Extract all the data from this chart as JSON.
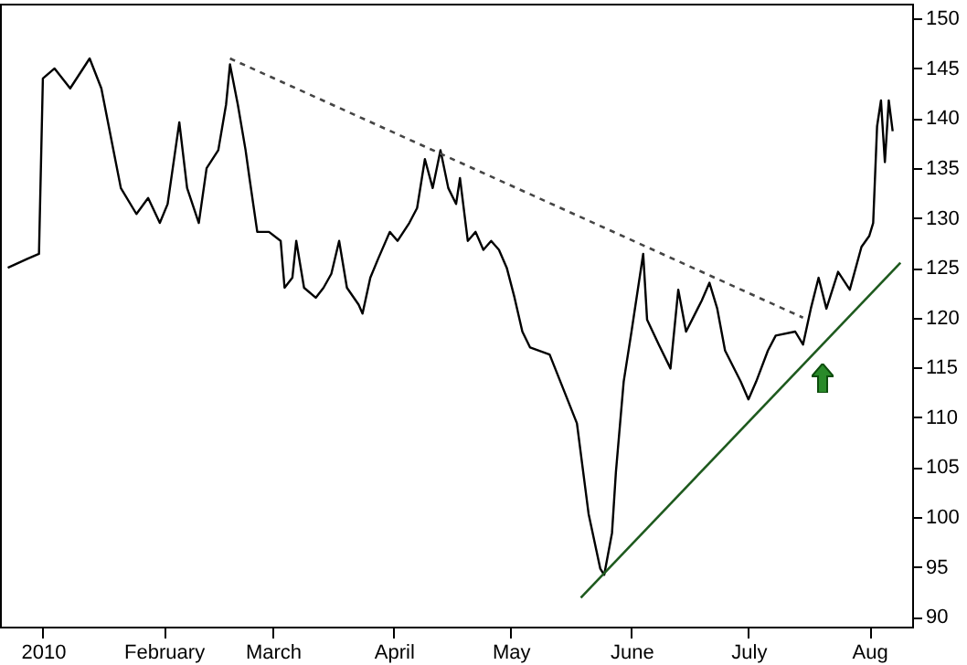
{
  "chart_data": {
    "type": "line",
    "xlim": [
      "2009-12-21",
      "2010-08-12"
    ],
    "xticks": [
      {
        "value": "2010-01-01",
        "label": "2010"
      },
      {
        "value": "2010-02-01",
        "label": "February"
      },
      {
        "value": "2010-03-01",
        "label": "March"
      },
      {
        "value": "2010-04-01",
        "label": "April"
      },
      {
        "value": "2010-05-01",
        "label": "May"
      },
      {
        "value": "2010-06-01",
        "label": "June"
      },
      {
        "value": "2010-07-01",
        "label": "July"
      },
      {
        "value": "2010-08-01",
        "label": "Aug"
      }
    ],
    "ylim": [
      89,
      151.5
    ],
    "yticks": [
      90,
      95,
      100,
      105,
      110,
      115,
      120,
      125,
      130,
      135,
      140,
      145,
      150
    ],
    "grid": false,
    "marker": "none",
    "series": [
      {
        "type": "line",
        "color": "#000000",
        "line_style": "solid",
        "x": [
          "2009-12-23",
          "2009-12-28",
          "2009-12-31",
          "2010-01-01",
          "2010-01-04",
          "2010-01-08",
          "2010-01-13",
          "2010-01-16",
          "2010-01-19",
          "2010-01-21",
          "2010-01-25",
          "2010-01-28",
          "2010-01-31",
          "2010-02-02",
          "2010-02-05",
          "2010-02-07",
          "2010-02-10",
          "2010-02-12",
          "2010-02-15",
          "2010-02-17",
          "2010-02-18",
          "2010-02-20",
          "2010-02-22",
          "2010-02-23",
          "2010-02-25",
          "2010-02-28",
          "2010-03-03",
          "2010-03-04",
          "2010-03-06",
          "2010-03-07",
          "2010-03-09",
          "2010-03-12",
          "2010-03-14",
          "2010-03-16",
          "2010-03-18",
          "2010-03-20",
          "2010-03-23",
          "2010-03-24",
          "2010-03-26",
          "2010-03-28",
          "2010-03-31",
          "2010-04-02",
          "2010-04-05",
          "2010-04-07",
          "2010-04-09",
          "2010-04-11",
          "2010-04-13",
          "2010-04-15",
          "2010-04-17",
          "2010-04-18",
          "2010-04-20",
          "2010-04-22",
          "2010-04-24",
          "2010-04-26",
          "2010-04-28",
          "2010-04-30",
          "2010-05-02",
          "2010-05-04",
          "2010-05-06",
          "2010-05-11",
          "2010-05-18",
          "2010-05-21",
          "2010-05-24",
          "2010-05-25",
          "2010-05-27",
          "2010-05-28",
          "2010-05-30",
          "2010-06-01",
          "2010-06-04",
          "2010-06-05",
          "2010-06-08",
          "2010-06-11",
          "2010-06-13",
          "2010-06-15",
          "2010-06-19",
          "2010-06-21",
          "2010-06-23",
          "2010-06-25",
          "2010-06-29",
          "2010-07-01",
          "2010-07-03",
          "2010-07-06",
          "2010-07-08",
          "2010-07-13",
          "2010-07-15",
          "2010-07-17",
          "2010-07-19",
          "2010-07-21",
          "2010-07-24",
          "2010-07-27",
          "2010-07-30",
          "2010-08-01",
          "2010-08-02",
          "2010-08-03",
          "2010-08-04",
          "2010-08-05",
          "2010-08-06",
          "2010-08-07"
        ],
        "values": [
          125.0,
          125.9,
          126.4,
          144,
          145,
          143,
          146,
          143,
          137,
          133,
          130.4,
          132,
          129.5,
          131.4,
          139.6,
          133,
          129.5,
          135,
          136.8,
          141.4,
          145.4,
          141.4,
          136.8,
          134,
          128.6,
          128.6,
          127.7,
          123,
          124,
          127.7,
          123,
          122,
          123,
          124.4,
          127.7,
          123,
          121.3,
          120.4,
          124,
          125.9,
          128.6,
          127.7,
          129.5,
          131,
          135.9,
          133,
          136.8,
          133,
          131.4,
          134,
          127.7,
          128.6,
          126.8,
          127.7,
          126.8,
          125,
          122,
          118.6,
          117,
          116.3,
          109.4,
          100.3,
          94.8,
          94.2,
          98.4,
          104.5,
          113.6,
          118.6,
          126.4,
          119.8,
          117.3,
          114.9,
          122.8,
          118.6,
          121.7,
          123.5,
          120.9,
          116.7,
          113.6,
          111.8,
          113.6,
          116.7,
          118.2,
          118.6,
          117.3,
          120.9,
          124,
          120.9,
          124.6,
          122.8,
          127.1,
          128.2,
          129.5,
          139.2,
          141.8,
          135.6,
          141.8,
          138.7
        ]
      },
      {
        "type": "line",
        "color": "#444444",
        "line_style": "dashed",
        "x": [
          "2010-02-18",
          "2010-07-15"
        ],
        "values": [
          146,
          120
        ]
      },
      {
        "type": "line",
        "color": "#1e5a1e",
        "line_style": "solid",
        "x": [
          "2010-05-19",
          "2010-08-09"
        ],
        "values": [
          91.9,
          125.5
        ]
      }
    ]
  }
}
